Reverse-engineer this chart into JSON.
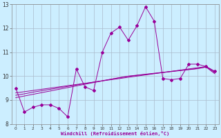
{
  "xlabel": "Windchill (Refroidissement éolien,°C)",
  "bg_color": "#cceeff",
  "line_color": "#990099",
  "grid_color": "#aabbcc",
  "x_data": [
    0,
    1,
    2,
    3,
    4,
    5,
    6,
    7,
    8,
    9,
    10,
    11,
    12,
    13,
    14,
    15,
    16,
    17,
    18,
    19,
    20,
    21,
    22,
    23
  ],
  "line1": [
    9.5,
    8.5,
    8.7,
    8.8,
    8.8,
    8.65,
    8.3,
    10.3,
    9.55,
    9.4,
    11.0,
    11.8,
    12.05,
    11.5,
    12.1,
    12.9,
    12.3,
    9.9,
    9.85,
    9.9,
    10.5,
    10.5,
    10.4,
    10.2
  ],
  "reg1": [
    9.3,
    9.35,
    9.4,
    9.45,
    9.5,
    9.55,
    9.6,
    9.65,
    9.7,
    9.75,
    9.8,
    9.85,
    9.9,
    9.95,
    10.0,
    10.05,
    10.1,
    10.15,
    10.2,
    10.25,
    10.3,
    10.35,
    10.4,
    10.2
  ],
  "reg2": [
    9.2,
    9.26,
    9.33,
    9.39,
    9.45,
    9.51,
    9.57,
    9.63,
    9.69,
    9.75,
    9.81,
    9.87,
    9.93,
    9.99,
    10.03,
    10.07,
    10.11,
    10.15,
    10.19,
    10.23,
    10.27,
    10.31,
    10.38,
    10.15
  ],
  "reg3": [
    9.1,
    9.17,
    9.24,
    9.31,
    9.38,
    9.45,
    9.52,
    9.59,
    9.66,
    9.73,
    9.8,
    9.87,
    9.94,
    10.0,
    10.04,
    10.08,
    10.12,
    10.16,
    10.2,
    10.24,
    10.28,
    10.32,
    10.38,
    10.1
  ],
  "ylim": [
    8.0,
    13.0
  ],
  "yticks": [
    8,
    9,
    10,
    11,
    12,
    13
  ],
  "xticks": [
    0,
    1,
    2,
    3,
    4,
    5,
    6,
    7,
    8,
    9,
    10,
    11,
    12,
    13,
    14,
    15,
    16,
    17,
    18,
    19,
    20,
    21,
    22,
    23
  ]
}
